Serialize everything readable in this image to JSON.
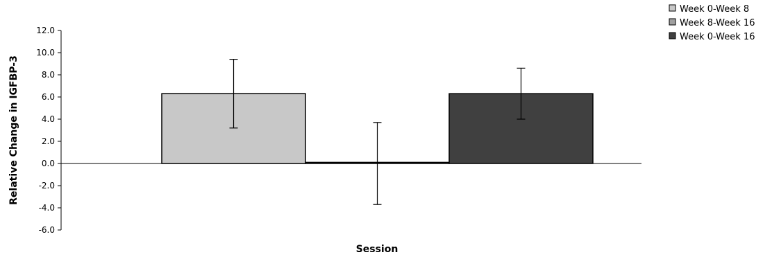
{
  "chart_data": {
    "type": "bar",
    "xlabel": "Session",
    "ylabel": "Relative Change in IGFBP-3",
    "ylim": [
      -6.0,
      12.0
    ],
    "yticks": [
      -6.0,
      -4.0,
      -2.0,
      0.0,
      2.0,
      4.0,
      6.0,
      8.0,
      10.0,
      12.0
    ],
    "grid": false,
    "legend_position": "top-right",
    "series": [
      {
        "name": "Week 0-Week 8",
        "value": 6.3,
        "error_low": 3.2,
        "error_high": 9.4,
        "color": "#c8c8c8"
      },
      {
        "name": "Week 8-Week 16",
        "value": 0.1,
        "error_low": -3.7,
        "error_high": 3.7,
        "color": "#a0a0a0"
      },
      {
        "name": "Week 0-Week 16",
        "value": 6.3,
        "error_low": 4.0,
        "error_high": 8.6,
        "color": "#404040"
      }
    ]
  }
}
